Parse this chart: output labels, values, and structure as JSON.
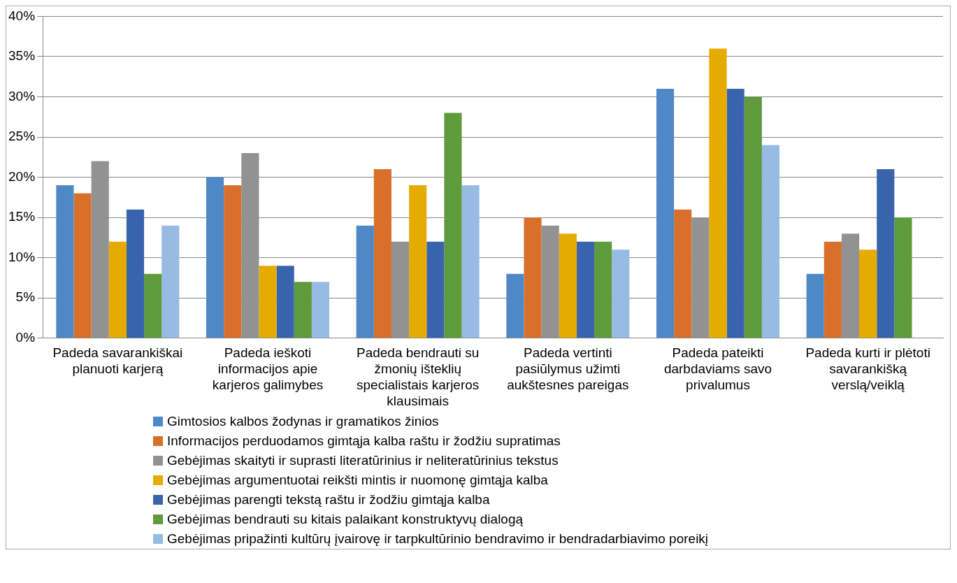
{
  "chart_data": {
    "type": "bar",
    "categories": [
      "Padeda savarankiškai planuoti karjerą",
      "Padeda ieškoti informacijos apie karjeros galimybes",
      "Padeda bendrauti su žmonių išteklių specialistais karjeros klausimais",
      "Padeda vertinti pasiūlymus užimti aukštesnes pareigas",
      "Padeda pateikti darbdaviams savo privalumus",
      "Padeda kurti ir plėtoti savarankišką verslą/veiklą"
    ],
    "series": [
      {
        "name": "Gimtosios kalbos žodynas ir gramatikos žinios",
        "color": "#4f88c6",
        "values": [
          19,
          20,
          14,
          8,
          31,
          8
        ]
      },
      {
        "name": "Informacijos perduodamos gimtąja kalba raštu ir žodžiu supratimas",
        "color": "#d8702c",
        "values": [
          18,
          19,
          21,
          15,
          16,
          12
        ]
      },
      {
        "name": "Gebėjimas skaityti ir suprasti literatūrinius ir neliteratūrinius tekstus",
        "color": "#929292",
        "values": [
          22,
          23,
          12,
          14,
          15,
          13
        ]
      },
      {
        "name": "Gebėjimas argumentuotai reikšti mintis ir nuomonę gimtąja kalba",
        "color": "#e5ab00",
        "values": [
          12,
          9,
          19,
          13,
          36,
          11
        ]
      },
      {
        "name": "Gebėjimas parengti tekstą raštu ir žodžiu gimtąja kalba",
        "color": "#3a63ad",
        "values": [
          16,
          9,
          12,
          12,
          31,
          21
        ]
      },
      {
        "name": "Gebėjimas bendrauti su kitais palaikant konstruktyvų dialogą",
        "color": "#5f9a3b",
        "values": [
          8,
          7,
          28,
          12,
          30,
          15
        ]
      },
      {
        "name": "Gebėjimas pripažinti kultūrų įvairovę ir tarpkultūrinio bendravimo ir bendradarbiavimo poreikį",
        "color": "#98bbe3",
        "values": [
          14,
          7,
          19,
          11,
          24,
          null
        ]
      }
    ],
    "ylim": [
      0,
      40
    ],
    "yticks": [
      {
        "value": 0,
        "label": "0%"
      },
      {
        "value": 5,
        "label": "5%"
      },
      {
        "value": 10,
        "label": "10%"
      },
      {
        "value": 15,
        "label": "15%"
      },
      {
        "value": 20,
        "label": "20%"
      },
      {
        "value": 25,
        "label": "25%"
      },
      {
        "value": 30,
        "label": "30%"
      },
      {
        "value": 35,
        "label": "35%"
      },
      {
        "value": 40,
        "label": "40%"
      }
    ],
    "grid": "y",
    "legend": "bottom"
  }
}
